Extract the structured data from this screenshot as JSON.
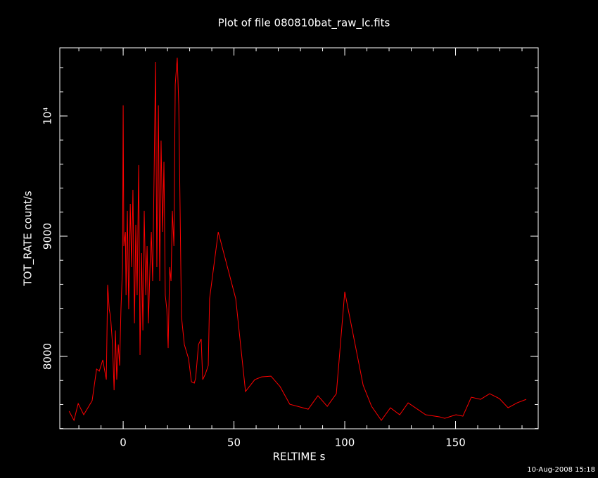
{
  "chart_data": {
    "type": "line",
    "title": "Plot of file 080810bat_raw_lc.fits",
    "x_label": "RELTIME  s",
    "y_label": "TOT_RATE  count/s",
    "timestamp": "10-Aug-2008 15:18",
    "xlim": [
      -28.6,
      187.3
    ],
    "ylim": [
      7398,
      10567
    ],
    "xticks": [
      0,
      50,
      100,
      150
    ],
    "yticks": [
      8000,
      9000,
      {
        "value": 10000,
        "label": "10⁴"
      }
    ],
    "series": [
      {
        "color": "#ff0000",
        "x": [
          -24.4,
          -22.2,
          -20.3,
          -17.8,
          -14,
          -12,
          -10.8,
          -9.2,
          -7.6,
          -7,
          -6.3,
          -5.7,
          -4.8,
          -4.1,
          -3.5,
          -2.9,
          -2.2,
          -1.6,
          -1,
          -0.3,
          0,
          0.3,
          1,
          1.3,
          1.9,
          2.5,
          3.2,
          3.8,
          4.4,
          5.1,
          5.7,
          6.3,
          7,
          7.6,
          8.3,
          8.9,
          9.5,
          10.2,
          10.8,
          11.4,
          12.1,
          12.7,
          13.3,
          14,
          14.6,
          15.2,
          15.9,
          16.5,
          17.1,
          17.8,
          18.4,
          19,
          19.7,
          20.3,
          21,
          21.6,
          22.2,
          22.9,
          23.5,
          24.4,
          25.1,
          26.3,
          27.6,
          29.5,
          30.8,
          32.1,
          32.7,
          34,
          35.2,
          35.9,
          37.1,
          38.4,
          39,
          42.9,
          50.8,
          55.2,
          59.4,
          62.5,
          66.7,
          70.8,
          75.2,
          83.5,
          87.9,
          92.1,
          96.2,
          100,
          108.3,
          112.1,
          116.5,
          120.6,
          124.8,
          128.6,
          136.5,
          142.9,
          145.1,
          150.2,
          153.3,
          157.1,
          161.3,
          165.4,
          169.8,
          173.7,
          177.8,
          181.9
        ],
        "values": [
          7544,
          7468,
          7608,
          7515,
          7632,
          7895,
          7877,
          7971,
          7807,
          8596,
          8392,
          8333,
          8099,
          7719,
          8216,
          7807,
          8099,
          7924,
          8392,
          8743,
          10088,
          8918,
          9035,
          8509,
          9211,
          8392,
          9269,
          8743,
          9386,
          8275,
          9094,
          8509,
          9591,
          8012,
          8860,
          8216,
          9211,
          8509,
          8918,
          8275,
          8743,
          9035,
          8626,
          9561,
          10450,
          8743,
          10088,
          8626,
          9795,
          9035,
          9620,
          8509,
          8392,
          8070,
          8743,
          8626,
          9211,
          8918,
          10263,
          10485,
          10088,
          8333,
          8099,
          7982,
          7789,
          7778,
          7819,
          8099,
          8146,
          7807,
          7854,
          7924,
          8480,
          9035,
          8480,
          7708,
          7807,
          7830,
          7836,
          7749,
          7602,
          7561,
          7673,
          7585,
          7690,
          8538,
          7760,
          7585,
          7468,
          7573,
          7515,
          7614,
          7515,
          7497,
          7485,
          7515,
          7503,
          7661,
          7643,
          7690,
          7649,
          7573,
          7614,
          7643
        ]
      }
    ]
  }
}
